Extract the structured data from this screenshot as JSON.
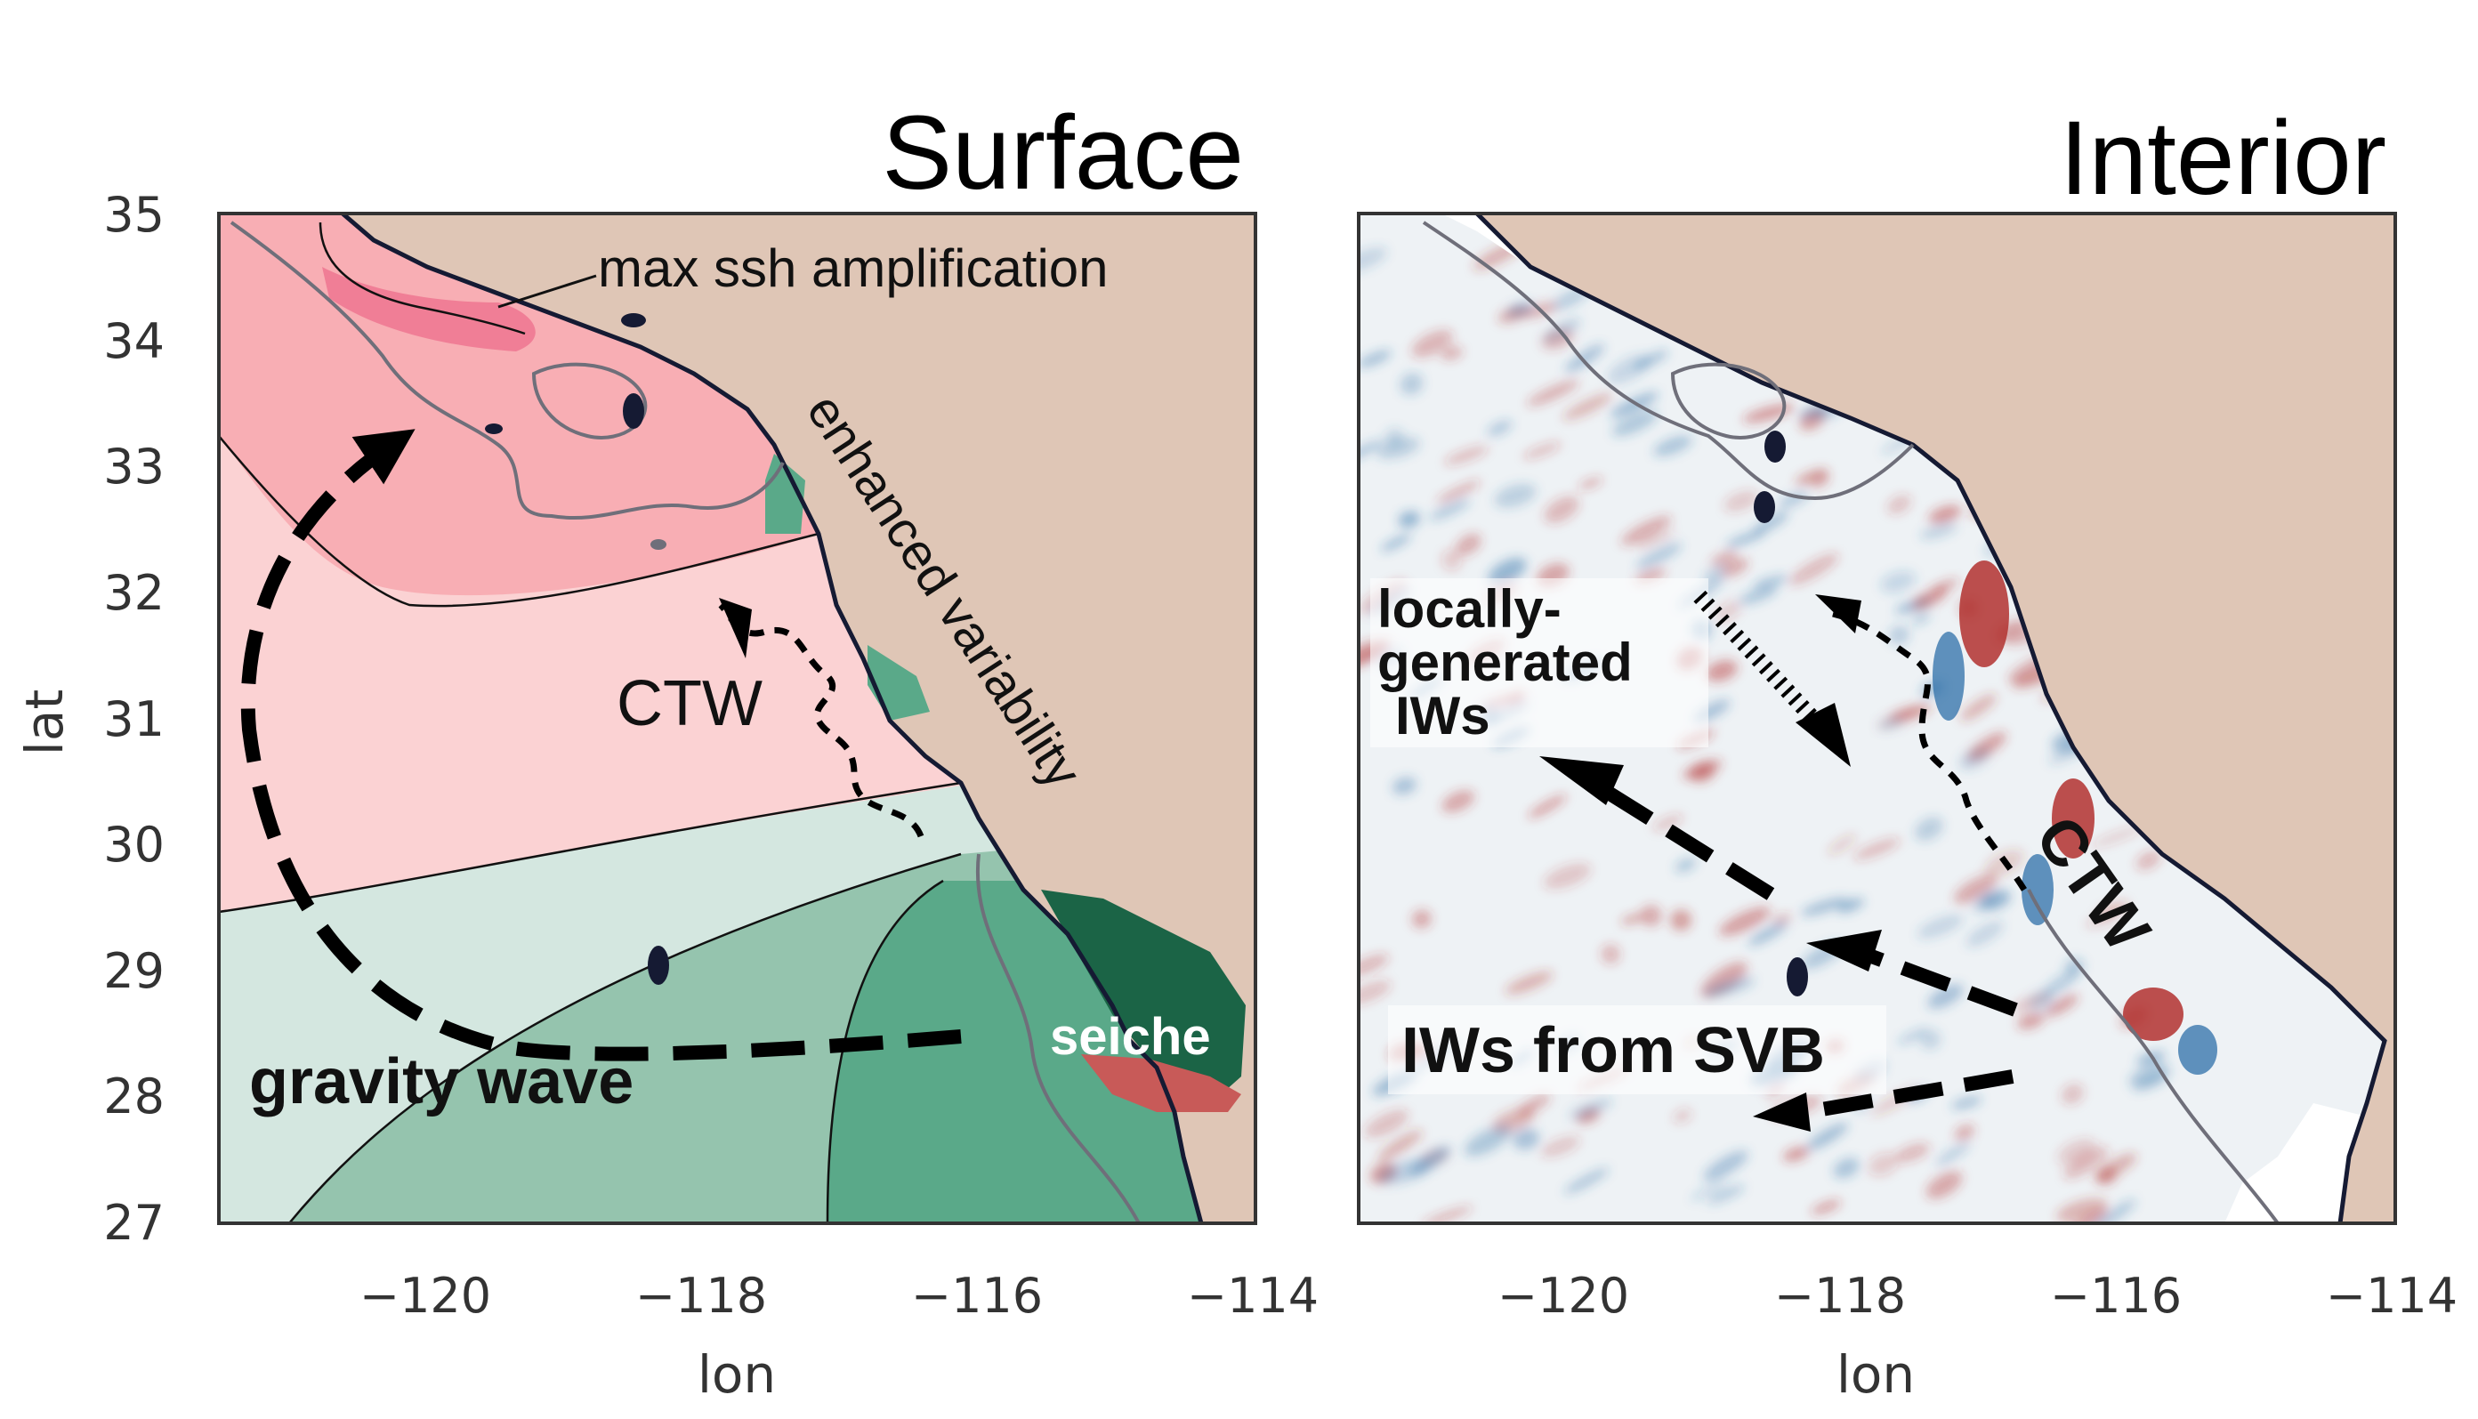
{
  "axes": {
    "xlabel": "lon",
    "ylabel": "lat",
    "xticks": [
      "−120",
      "−118",
      "−116",
      "−114"
    ],
    "yticks": [
      "35",
      "34",
      "33",
      "32",
      "31",
      "30",
      "29",
      "28",
      "27"
    ],
    "xlim": [
      -121.4,
      -113.9
    ],
    "ylim": [
      27,
      35
    ]
  },
  "panels": [
    {
      "title": "Surface",
      "annotations": {
        "max_ssh": "max ssh amplification",
        "enhanced": "enhanced variability",
        "ctw": "CTW",
        "gravity": "gravity wave",
        "seiche": "seiche"
      }
    },
    {
      "title": "Interior",
      "annotations": {
        "local_line1": "locally-",
        "local_line2": "generated",
        "local_line3": "IWs",
        "ctw": "CTW",
        "svb": "IWs from SVB"
      }
    }
  ],
  "colors": {
    "land": "#dfc6b6",
    "pink_dark": "#f07e96",
    "pink_mid": "#f8aeb4",
    "pink_light": "#fbd2d3",
    "green_pale": "#d4e7e0",
    "green_light": "#95c4ae",
    "green_mid": "#5aa989",
    "green_dark": "#1b6446",
    "seiche_red": "#c85a58",
    "anomaly_red": "#b2312f",
    "anomaly_blue": "#2e6fa8"
  }
}
